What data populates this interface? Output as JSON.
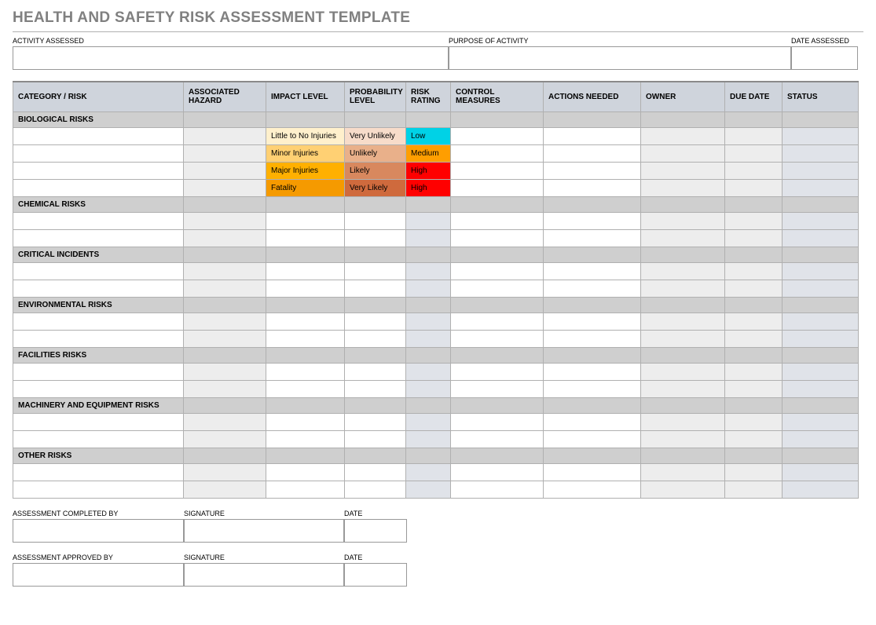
{
  "title": "HEALTH AND SAFETY RISK ASSESSMENT TEMPLATE",
  "top": {
    "activity_label": "ACTIVITY ASSESSED",
    "purpose_label": "PURPOSE OF ACTIVITY",
    "date_label": "DATE ASSESSED"
  },
  "columns": {
    "cat": "CATEGORY / RISK",
    "hazard": "ASSOCIATED HAZARD",
    "impact": "IMPACT LEVEL",
    "prob": "PROBABILITY LEVEL",
    "rating": "RISK RATING",
    "ctrl": "CONTROL MEASURES",
    "action": "ACTIONS NEEDED",
    "owner": "OWNER",
    "due": "DUE DATE",
    "status": "STATUS"
  },
  "sections": [
    {
      "name": "BIOLOGICAL RISKS",
      "rows": [
        {
          "impact": {
            "text": "Little to No Injuries",
            "bg": "#fff0cc"
          },
          "prob": {
            "text": "Very Unlikely",
            "bg": "#f7dcca"
          },
          "rating": {
            "text": "Low",
            "bg": "#00d2e6"
          }
        },
        {
          "impact": {
            "text": "Minor Injuries",
            "bg": "#ffd073"
          },
          "prob": {
            "text": "Unlikely",
            "bg": "#e9b08a"
          },
          "rating": {
            "text": "Medium",
            "bg": "#ff9e00"
          }
        },
        {
          "impact": {
            "text": "Major Injuries",
            "bg": "#ffb000"
          },
          "prob": {
            "text": "Likely",
            "bg": "#d8885e"
          },
          "rating": {
            "text": "High",
            "bg": "#ff0000"
          }
        },
        {
          "impact": {
            "text": "Fatality",
            "bg": "#f59a00"
          },
          "prob": {
            "text": "Very Likely",
            "bg": "#cf6a3d"
          },
          "rating": {
            "text": "High",
            "bg": "#ff0000"
          }
        }
      ]
    },
    {
      "name": "CHEMICAL RISKS",
      "rows": [
        {},
        {}
      ]
    },
    {
      "name": "CRITICAL INCIDENTS",
      "rows": [
        {},
        {}
      ]
    },
    {
      "name": "ENVIRONMENTAL RISKS",
      "rows": [
        {},
        {}
      ]
    },
    {
      "name": "FACILITIES RISKS",
      "rows": [
        {},
        {}
      ]
    },
    {
      "name": "MACHINERY AND EQUIPMENT RISKS",
      "rows": [
        {},
        {}
      ]
    },
    {
      "name": "OTHER RISKS",
      "rows": [
        {},
        {}
      ]
    }
  ],
  "sign": {
    "a": {
      "who": "ASSESSMENT COMPLETED BY",
      "sig": "SIGNATURE",
      "date": "DATE"
    },
    "b": {
      "who": "ASSESSMENT APPROVED BY",
      "sig": "SIGNATURE",
      "date": "DATE"
    }
  },
  "colors": {
    "header_bg": "#cfd4dc",
    "section_bg": "#cfcfcf",
    "title_color": "#808080"
  }
}
